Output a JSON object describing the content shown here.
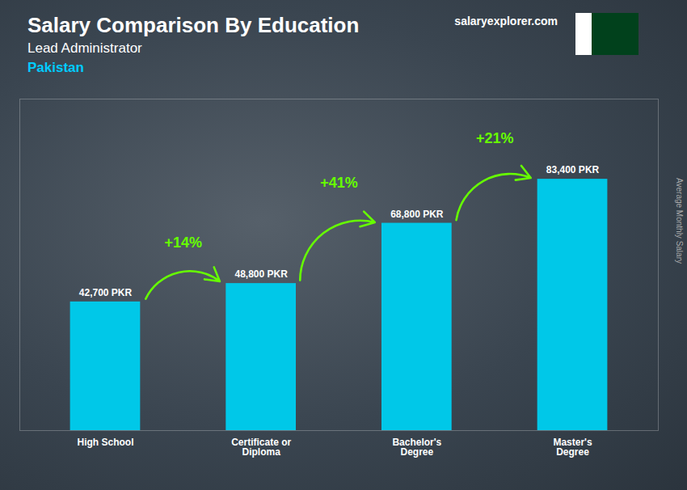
{
  "chart_data": {
    "type": "bar",
    "title": "Salary Comparison By Education",
    "subtitle": "Lead Administrator",
    "ylabel": "Average Monthly Salary",
    "categories": [
      "High School",
      "Certificate or\nDiploma",
      "Bachelor's\nDegree",
      "Master's\nDegree"
    ],
    "values": [
      42700,
      48800,
      68800,
      83400
    ],
    "value_labels": [
      "42,700 PKR",
      "48,800 PKR",
      "68,800 PKR",
      "83,400 PKR"
    ],
    "data_labels": true,
    "color": "#00c8e8",
    "ylim": [
      0,
      110000
    ],
    "tick_labels": "x",
    "grid": false,
    "annotations": [
      {
        "text": "Pakistan"
      },
      {
        "text": "salaryexplorer.com"
      },
      {
        "text": "+14%",
        "x": [
          "High School",
          "Certificate or\nDiploma"
        ],
        "color": "#66ff00"
      },
      {
        "text": "+41%",
        "x": [
          "Certificate or\nDiploma",
          "Bachelor's\nDegree"
        ],
        "color": "#66ff00"
      },
      {
        "text": "+21%",
        "x": [
          "Bachelor's\nDegree",
          "Master's\nDegree"
        ],
        "color": "#66ff00"
      }
    ]
  }
}
